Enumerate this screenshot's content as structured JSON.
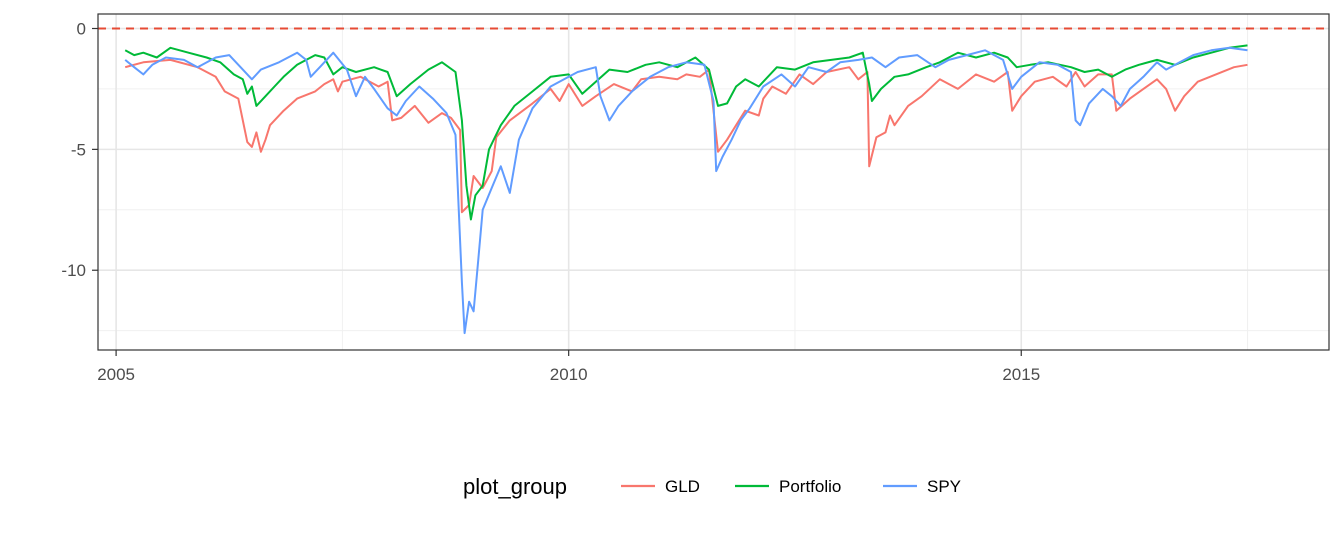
{
  "chart_data": {
    "type": "line",
    "title": "",
    "xlabel": "",
    "ylabel": "",
    "xlim": [
      2004.8,
      2018.4
    ],
    "ylim": [
      -13.3,
      0.6
    ],
    "x_ticks": [
      2005,
      2010,
      2015
    ],
    "x_tick_labels": [
      "2005",
      "2010",
      "2015"
    ],
    "y_ticks": [
      0,
      -5,
      -10
    ],
    "y_tick_labels": [
      "0",
      "-5",
      "-10"
    ],
    "grid": true,
    "reference_line": {
      "y": 0,
      "style": "dashed",
      "color": "#e64b35"
    },
    "legend": {
      "title": "plot_group",
      "position": "bottom"
    },
    "series": [
      {
        "name": "GLD",
        "color": "#f8766d",
        "points": [
          [
            2005.1,
            -1.6
          ],
          [
            2005.3,
            -1.4
          ],
          [
            2005.6,
            -1.3
          ],
          [
            2005.9,
            -1.6
          ],
          [
            2006.1,
            -2.0
          ],
          [
            2006.2,
            -2.6
          ],
          [
            2006.35,
            -2.9
          ],
          [
            2006.45,
            -4.7
          ],
          [
            2006.5,
            -4.9
          ],
          [
            2006.55,
            -4.3
          ],
          [
            2006.6,
            -5.1
          ],
          [
            2006.65,
            -4.6
          ],
          [
            2006.7,
            -4.0
          ],
          [
            2006.85,
            -3.4
          ],
          [
            2007.0,
            -2.9
          ],
          [
            2007.2,
            -2.6
          ],
          [
            2007.3,
            -2.3
          ],
          [
            2007.4,
            -2.1
          ],
          [
            2007.45,
            -2.6
          ],
          [
            2007.5,
            -2.2
          ],
          [
            2007.7,
            -2.0
          ],
          [
            2007.9,
            -2.4
          ],
          [
            2008.0,
            -2.2
          ],
          [
            2008.05,
            -3.8
          ],
          [
            2008.15,
            -3.7
          ],
          [
            2008.3,
            -3.2
          ],
          [
            2008.45,
            -3.9
          ],
          [
            2008.6,
            -3.5
          ],
          [
            2008.7,
            -3.7
          ],
          [
            2008.8,
            -4.2
          ],
          [
            2008.82,
            -7.6
          ],
          [
            2008.9,
            -7.3
          ],
          [
            2008.95,
            -6.1
          ],
          [
            2009.05,
            -6.6
          ],
          [
            2009.15,
            -5.9
          ],
          [
            2009.2,
            -4.5
          ],
          [
            2009.35,
            -3.8
          ],
          [
            2009.6,
            -3.1
          ],
          [
            2009.8,
            -2.5
          ],
          [
            2009.9,
            -3.0
          ],
          [
            2010.0,
            -2.3
          ],
          [
            2010.15,
            -3.2
          ],
          [
            2010.3,
            -2.8
          ],
          [
            2010.5,
            -2.3
          ],
          [
            2010.7,
            -2.6
          ],
          [
            2010.8,
            -2.1
          ],
          [
            2011.0,
            -2.0
          ],
          [
            2011.2,
            -2.1
          ],
          [
            2011.3,
            -1.9
          ],
          [
            2011.45,
            -2.0
          ],
          [
            2011.55,
            -1.7
          ],
          [
            2011.6,
            -3.4
          ],
          [
            2011.65,
            -5.1
          ],
          [
            2011.75,
            -4.6
          ],
          [
            2011.85,
            -4.0
          ],
          [
            2011.95,
            -3.4
          ],
          [
            2012.1,
            -3.6
          ],
          [
            2012.15,
            -2.9
          ],
          [
            2012.25,
            -2.4
          ],
          [
            2012.4,
            -2.7
          ],
          [
            2012.55,
            -1.9
          ],
          [
            2012.7,
            -2.3
          ],
          [
            2012.85,
            -1.8
          ],
          [
            2013.1,
            -1.6
          ],
          [
            2013.2,
            -2.1
          ],
          [
            2013.3,
            -1.8
          ],
          [
            2013.32,
            -5.7
          ],
          [
            2013.4,
            -4.5
          ],
          [
            2013.5,
            -4.3
          ],
          [
            2013.55,
            -3.6
          ],
          [
            2013.6,
            -4.0
          ],
          [
            2013.75,
            -3.2
          ],
          [
            2013.9,
            -2.8
          ],
          [
            2014.1,
            -2.1
          ],
          [
            2014.3,
            -2.5
          ],
          [
            2014.5,
            -1.9
          ],
          [
            2014.7,
            -2.2
          ],
          [
            2014.85,
            -1.8
          ],
          [
            2014.9,
            -3.4
          ],
          [
            2015.0,
            -2.8
          ],
          [
            2015.15,
            -2.2
          ],
          [
            2015.35,
            -2.0
          ],
          [
            2015.5,
            -2.4
          ],
          [
            2015.6,
            -1.8
          ],
          [
            2015.7,
            -2.4
          ],
          [
            2015.85,
            -1.9
          ],
          [
            2016.0,
            -1.9
          ],
          [
            2016.05,
            -3.4
          ],
          [
            2016.2,
            -2.9
          ],
          [
            2016.35,
            -2.5
          ],
          [
            2016.5,
            -2.1
          ],
          [
            2016.6,
            -2.5
          ],
          [
            2016.7,
            -3.4
          ],
          [
            2016.8,
            -2.8
          ],
          [
            2016.95,
            -2.2
          ],
          [
            2017.15,
            -1.9
          ],
          [
            2017.35,
            -1.6
          ],
          [
            2017.5,
            -1.5
          ]
        ]
      },
      {
        "name": "Portfolio",
        "color": "#00ba38",
        "points": [
          [
            2005.1,
            -0.9
          ],
          [
            2005.2,
            -1.1
          ],
          [
            2005.3,
            -1.0
          ],
          [
            2005.45,
            -1.2
          ],
          [
            2005.6,
            -0.8
          ],
          [
            2005.8,
            -1.0
          ],
          [
            2006.0,
            -1.2
          ],
          [
            2006.15,
            -1.4
          ],
          [
            2006.3,
            -1.9
          ],
          [
            2006.4,
            -2.1
          ],
          [
            2006.45,
            -2.7
          ],
          [
            2006.5,
            -2.4
          ],
          [
            2006.55,
            -3.2
          ],
          [
            2006.65,
            -2.8
          ],
          [
            2006.75,
            -2.4
          ],
          [
            2006.85,
            -2.0
          ],
          [
            2007.0,
            -1.5
          ],
          [
            2007.1,
            -1.3
          ],
          [
            2007.2,
            -1.1
          ],
          [
            2007.3,
            -1.2
          ],
          [
            2007.4,
            -1.9
          ],
          [
            2007.5,
            -1.6
          ],
          [
            2007.65,
            -1.8
          ],
          [
            2007.85,
            -1.6
          ],
          [
            2008.0,
            -1.8
          ],
          [
            2008.1,
            -2.8
          ],
          [
            2008.25,
            -2.3
          ],
          [
            2008.45,
            -1.7
          ],
          [
            2008.6,
            -1.4
          ],
          [
            2008.75,
            -1.8
          ],
          [
            2008.82,
            -3.8
          ],
          [
            2008.87,
            -6.5
          ],
          [
            2008.92,
            -7.9
          ],
          [
            2008.97,
            -6.9
          ],
          [
            2009.05,
            -6.5
          ],
          [
            2009.12,
            -5.0
          ],
          [
            2009.25,
            -4.0
          ],
          [
            2009.4,
            -3.2
          ],
          [
            2009.6,
            -2.6
          ],
          [
            2009.8,
            -2.0
          ],
          [
            2010.0,
            -1.9
          ],
          [
            2010.15,
            -2.7
          ],
          [
            2010.3,
            -2.2
          ],
          [
            2010.45,
            -1.7
          ],
          [
            2010.65,
            -1.8
          ],
          [
            2010.85,
            -1.5
          ],
          [
            2011.0,
            -1.4
          ],
          [
            2011.2,
            -1.6
          ],
          [
            2011.4,
            -1.2
          ],
          [
            2011.55,
            -1.7
          ],
          [
            2011.65,
            -3.2
          ],
          [
            2011.75,
            -3.1
          ],
          [
            2011.85,
            -2.4
          ],
          [
            2011.95,
            -2.1
          ],
          [
            2012.1,
            -2.4
          ],
          [
            2012.3,
            -1.6
          ],
          [
            2012.5,
            -1.7
          ],
          [
            2012.7,
            -1.4
          ],
          [
            2012.9,
            -1.3
          ],
          [
            2013.1,
            -1.2
          ],
          [
            2013.25,
            -1.0
          ],
          [
            2013.32,
            -2.3
          ],
          [
            2013.35,
            -3.0
          ],
          [
            2013.45,
            -2.5
          ],
          [
            2013.6,
            -2.0
          ],
          [
            2013.75,
            -1.9
          ],
          [
            2013.95,
            -1.6
          ],
          [
            2014.1,
            -1.4
          ],
          [
            2014.3,
            -1.0
          ],
          [
            2014.5,
            -1.2
          ],
          [
            2014.7,
            -1.0
          ],
          [
            2014.85,
            -1.2
          ],
          [
            2014.95,
            -1.6
          ],
          [
            2015.1,
            -1.5
          ],
          [
            2015.3,
            -1.4
          ],
          [
            2015.55,
            -1.6
          ],
          [
            2015.7,
            -1.8
          ],
          [
            2015.85,
            -1.7
          ],
          [
            2016.0,
            -2.0
          ],
          [
            2016.15,
            -1.7
          ],
          [
            2016.3,
            -1.5
          ],
          [
            2016.5,
            -1.3
          ],
          [
            2016.7,
            -1.5
          ],
          [
            2016.9,
            -1.2
          ],
          [
            2017.1,
            -1.0
          ],
          [
            2017.3,
            -0.8
          ],
          [
            2017.5,
            -0.7
          ]
        ]
      },
      {
        "name": "SPY",
        "color": "#619cff",
        "points": [
          [
            2005.1,
            -1.3
          ],
          [
            2005.2,
            -1.6
          ],
          [
            2005.3,
            -1.9
          ],
          [
            2005.4,
            -1.5
          ],
          [
            2005.55,
            -1.2
          ],
          [
            2005.75,
            -1.3
          ],
          [
            2005.9,
            -1.6
          ],
          [
            2006.1,
            -1.2
          ],
          [
            2006.25,
            -1.1
          ],
          [
            2006.4,
            -1.7
          ],
          [
            2006.5,
            -2.1
          ],
          [
            2006.6,
            -1.7
          ],
          [
            2006.8,
            -1.4
          ],
          [
            2007.0,
            -1.0
          ],
          [
            2007.1,
            -1.3
          ],
          [
            2007.15,
            -2.0
          ],
          [
            2007.25,
            -1.6
          ],
          [
            2007.4,
            -1.0
          ],
          [
            2007.55,
            -1.7
          ],
          [
            2007.65,
            -2.8
          ],
          [
            2007.75,
            -2.0
          ],
          [
            2007.85,
            -2.5
          ],
          [
            2008.0,
            -3.3
          ],
          [
            2008.1,
            -3.6
          ],
          [
            2008.2,
            -3.0
          ],
          [
            2008.35,
            -2.4
          ],
          [
            2008.5,
            -2.9
          ],
          [
            2008.65,
            -3.5
          ],
          [
            2008.75,
            -4.4
          ],
          [
            2008.82,
            -10.5
          ],
          [
            2008.85,
            -12.6
          ],
          [
            2008.9,
            -11.3
          ],
          [
            2008.95,
            -11.7
          ],
          [
            2009.0,
            -9.6
          ],
          [
            2009.05,
            -7.5
          ],
          [
            2009.15,
            -6.6
          ],
          [
            2009.25,
            -5.7
          ],
          [
            2009.35,
            -6.8
          ],
          [
            2009.45,
            -4.6
          ],
          [
            2009.6,
            -3.3
          ],
          [
            2009.8,
            -2.4
          ],
          [
            2010.0,
            -2.0
          ],
          [
            2010.1,
            -1.8
          ],
          [
            2010.3,
            -1.6
          ],
          [
            2010.35,
            -2.8
          ],
          [
            2010.45,
            -3.8
          ],
          [
            2010.55,
            -3.2
          ],
          [
            2010.7,
            -2.6
          ],
          [
            2010.9,
            -2.0
          ],
          [
            2011.1,
            -1.6
          ],
          [
            2011.3,
            -1.4
          ],
          [
            2011.5,
            -1.5
          ],
          [
            2011.6,
            -3.0
          ],
          [
            2011.63,
            -5.9
          ],
          [
            2011.7,
            -5.3
          ],
          [
            2011.8,
            -4.6
          ],
          [
            2011.9,
            -3.8
          ],
          [
            2012.0,
            -3.3
          ],
          [
            2012.15,
            -2.4
          ],
          [
            2012.35,
            -1.9
          ],
          [
            2012.5,
            -2.4
          ],
          [
            2012.65,
            -1.6
          ],
          [
            2012.85,
            -1.8
          ],
          [
            2013.0,
            -1.4
          ],
          [
            2013.2,
            -1.3
          ],
          [
            2013.35,
            -1.2
          ],
          [
            2013.5,
            -1.6
          ],
          [
            2013.65,
            -1.2
          ],
          [
            2013.85,
            -1.1
          ],
          [
            2014.05,
            -1.6
          ],
          [
            2014.2,
            -1.3
          ],
          [
            2014.4,
            -1.1
          ],
          [
            2014.6,
            -0.9
          ],
          [
            2014.8,
            -1.3
          ],
          [
            2014.9,
            -2.5
          ],
          [
            2015.0,
            -2.0
          ],
          [
            2015.2,
            -1.4
          ],
          [
            2015.4,
            -1.5
          ],
          [
            2015.55,
            -1.8
          ],
          [
            2015.6,
            -3.8
          ],
          [
            2015.65,
            -4.0
          ],
          [
            2015.75,
            -3.1
          ],
          [
            2015.9,
            -2.5
          ],
          [
            2016.0,
            -2.8
          ],
          [
            2016.1,
            -3.2
          ],
          [
            2016.2,
            -2.5
          ],
          [
            2016.35,
            -2.0
          ],
          [
            2016.5,
            -1.4
          ],
          [
            2016.6,
            -1.7
          ],
          [
            2016.75,
            -1.4
          ],
          [
            2016.9,
            -1.1
          ],
          [
            2017.1,
            -0.9
          ],
          [
            2017.3,
            -0.8
          ],
          [
            2017.5,
            -0.9
          ]
        ]
      }
    ]
  }
}
